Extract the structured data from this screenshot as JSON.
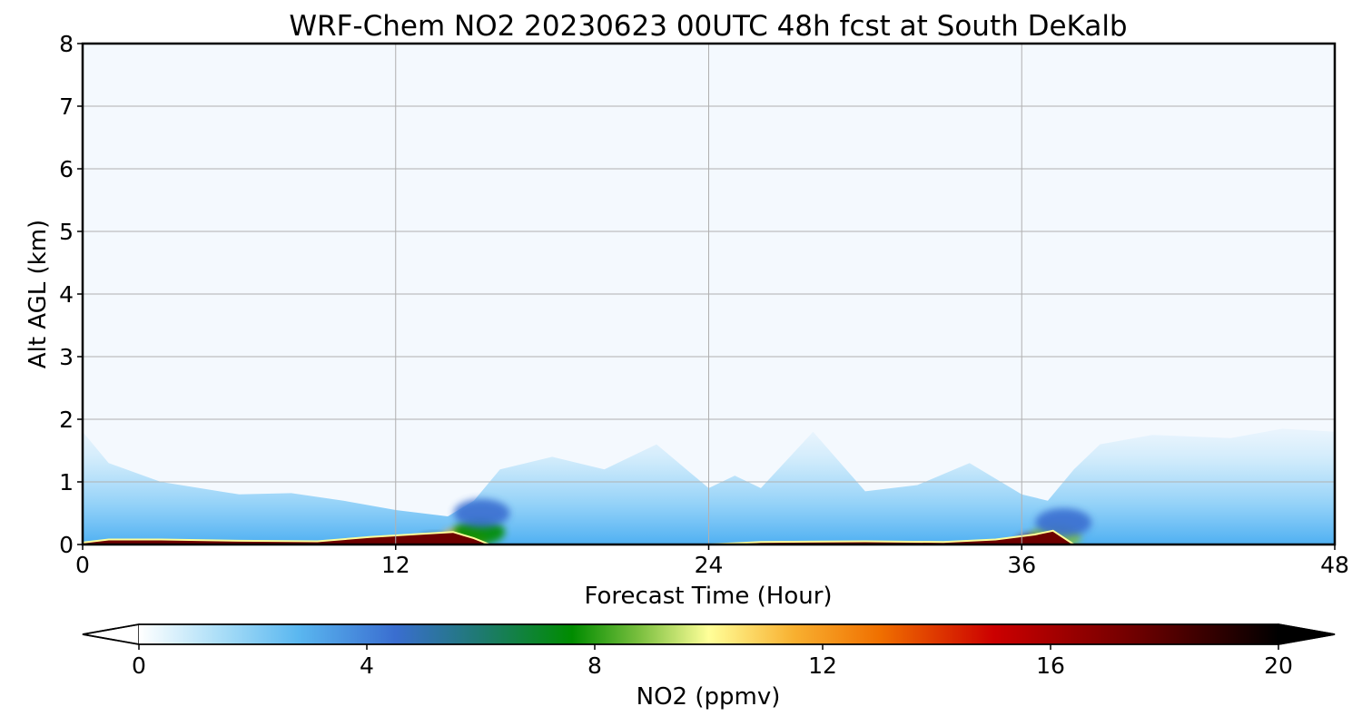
{
  "chart_data": {
    "type": "heatmap",
    "title": "WRF-Chem NO2  20230623 00UTC 48h fcst at South DeKalb",
    "xlabel": "Forecast Time (Hour)",
    "ylabel": "Alt AGL (km)",
    "xlim": [
      0,
      48
    ],
    "ylim": [
      0,
      8
    ],
    "x_ticks": [
      "0",
      "12",
      "24",
      "36",
      "48"
    ],
    "y_ticks": [
      "0",
      "1",
      "2",
      "3",
      "4",
      "5",
      "6",
      "7",
      "8"
    ],
    "grid": true,
    "colorbar": {
      "label": "NO2  (ppmv)",
      "range": [
        0,
        20
      ],
      "ticks": [
        "0",
        "4",
        "8",
        "12",
        "16",
        "20"
      ],
      "extend": "both",
      "stops": [
        {
          "value": 0,
          "color": "#ffffff"
        },
        {
          "value": 1.5,
          "color": "#a6dcf7"
        },
        {
          "value": 2.8,
          "color": "#5ab7f0"
        },
        {
          "value": 4.5,
          "color": "#3a6ed0"
        },
        {
          "value": 6,
          "color": "#1e7a70"
        },
        {
          "value": 7.6,
          "color": "#008c00"
        },
        {
          "value": 8.8,
          "color": "#7cc040"
        },
        {
          "value": 10,
          "color": "#ffff99"
        },
        {
          "value": 11.5,
          "color": "#f8b030"
        },
        {
          "value": 13,
          "color": "#f07000"
        },
        {
          "value": 15,
          "color": "#cc0000"
        },
        {
          "value": 17.5,
          "color": "#6e0000"
        },
        {
          "value": 20,
          "color": "#000000"
        }
      ]
    },
    "background_color": "#f4f9fe",
    "blue_layer_top_km": [
      [
        0,
        1.8
      ],
      [
        1,
        1.3
      ],
      [
        3,
        1.0
      ],
      [
        6,
        0.8
      ],
      [
        8,
        0.82
      ],
      [
        10,
        0.7
      ],
      [
        12,
        0.55
      ],
      [
        14,
        0.45
      ],
      [
        15,
        0.7
      ],
      [
        16,
        1.2
      ],
      [
        18,
        1.4
      ],
      [
        20,
        1.2
      ],
      [
        22,
        1.6
      ],
      [
        24,
        0.9
      ],
      [
        25,
        1.1
      ],
      [
        26,
        0.9
      ],
      [
        28,
        1.8
      ],
      [
        30,
        0.85
      ],
      [
        32,
        0.95
      ],
      [
        34,
        1.3
      ],
      [
        36,
        0.8
      ],
      [
        37,
        0.7
      ],
      [
        38,
        1.2
      ],
      [
        39,
        1.6
      ],
      [
        41,
        1.75
      ],
      [
        44,
        1.7
      ],
      [
        46,
        1.85
      ],
      [
        48,
        1.8
      ]
    ],
    "surface_no2_top_km": [
      [
        0,
        0.03
      ],
      [
        1,
        0.08
      ],
      [
        3,
        0.08
      ],
      [
        6,
        0.06
      ],
      [
        9,
        0.05
      ],
      [
        11,
        0.12
      ],
      [
        13,
        0.17
      ],
      [
        14.2,
        0.2
      ],
      [
        15,
        0.1
      ],
      [
        15.6,
        0.0
      ],
      [
        24,
        0.0
      ],
      [
        26,
        0.04
      ],
      [
        30,
        0.05
      ],
      [
        33,
        0.04
      ],
      [
        35,
        0.08
      ],
      [
        36.5,
        0.16
      ],
      [
        37.2,
        0.22
      ],
      [
        38,
        0.0
      ],
      [
        48,
        0.0
      ]
    ],
    "hotspots": [
      {
        "x": 13.5,
        "y_km": 0.05,
        "value": 19
      },
      {
        "x": 14.6,
        "y_km": 0.1,
        "value": 11
      },
      {
        "x": 15.2,
        "y_km": 0.2,
        "value": 7
      },
      {
        "x": 15.3,
        "y_km": 0.5,
        "value": 4
      },
      {
        "x": 36.5,
        "y_km": 0.05,
        "value": 17
      },
      {
        "x": 37.3,
        "y_km": 0.12,
        "value": 8
      },
      {
        "x": 37.6,
        "y_km": 0.35,
        "value": 4
      }
    ]
  }
}
